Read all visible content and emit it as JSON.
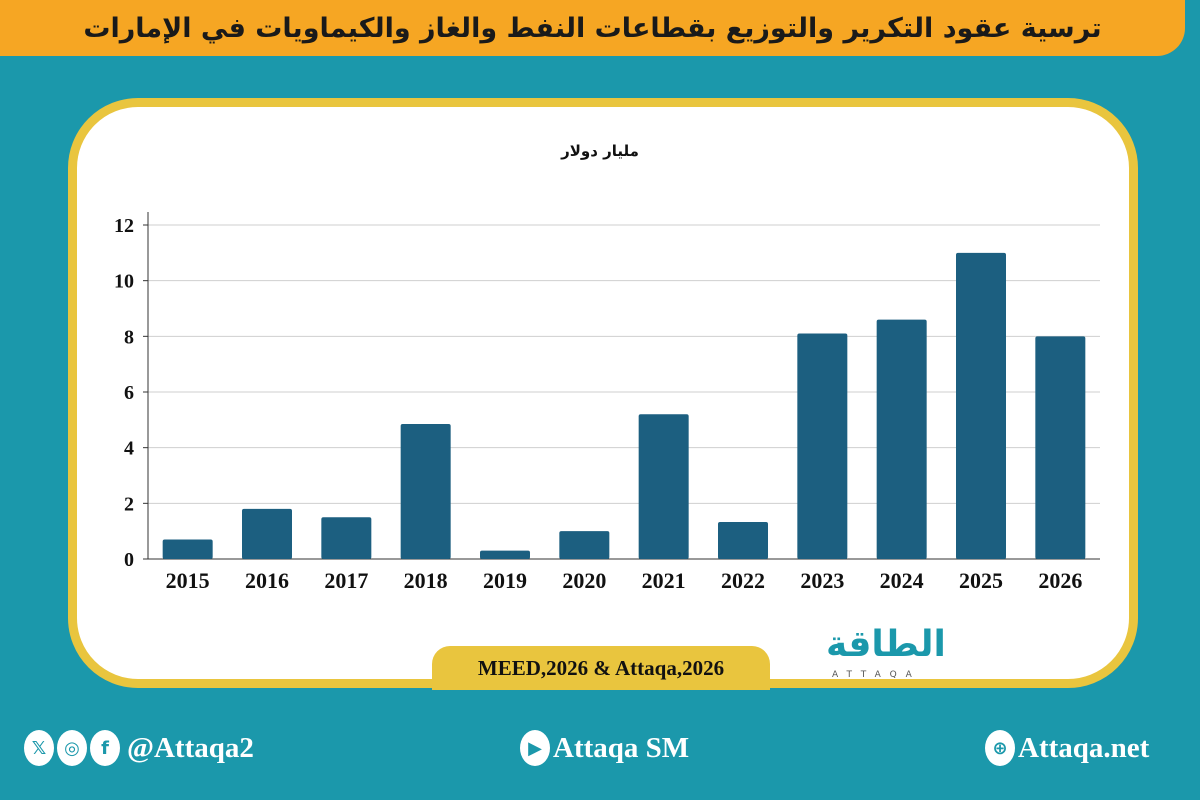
{
  "header": {
    "title": "ترسية عقود التكرير والتوزيع بقطاعات النفط والغاز والكيماويات في الإمارات"
  },
  "chart_data": {
    "type": "bar",
    "ylabel": "مليار دولار",
    "categories": [
      "2015",
      "2016",
      "2017",
      "2018",
      "2019",
      "2020",
      "2021",
      "2022",
      "2023",
      "2024",
      "2025",
      "2026"
    ],
    "values": [
      0.7,
      1.8,
      1.5,
      4.85,
      0.3,
      1.0,
      5.2,
      1.33,
      8.1,
      8.6,
      11.0,
      8.0
    ],
    "ylim": [
      0,
      12
    ],
    "yticks": [
      "0",
      "2",
      "4",
      "6",
      "8",
      "10",
      "12"
    ],
    "grid": true,
    "bar_color": "#1c5f80"
  },
  "source": "MEED,2026 & Attaqa,2026",
  "logo": {
    "arabic": "الطاقة",
    "english": "ATTAQA"
  },
  "footer": {
    "social_handle": "@Attaqa2",
    "youtube": "Attaqa SM",
    "website": "Attaqa.net"
  },
  "colors": {
    "background": "#1b98ab",
    "title_bar": "#f6a623",
    "frame": "#e9c53e"
  }
}
